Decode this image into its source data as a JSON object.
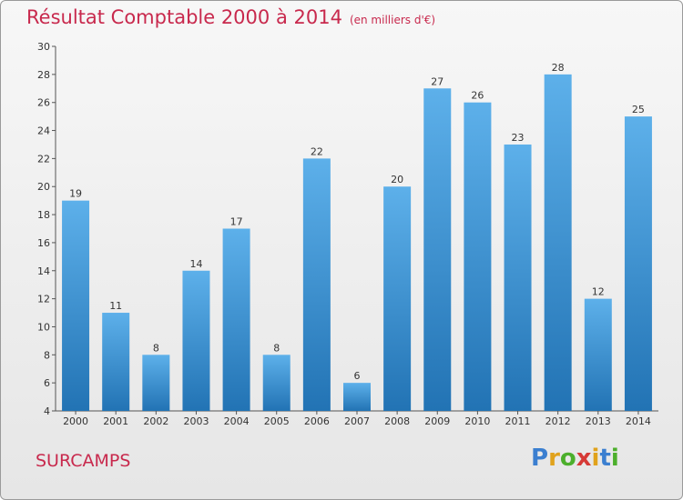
{
  "header": {
    "title": "Résultat Comptable 2000 à 2014",
    "unit": "(en milliers d'€)"
  },
  "footer": {
    "place": "SURCAMPS",
    "logo": "Proxiti"
  },
  "colors": {
    "bar_light": "#5db0ea",
    "bar_dark": "#2273b4",
    "title": "#c8294d"
  },
  "chart_data": {
    "type": "bar",
    "title": "Résultat Comptable 2000 à 2014",
    "xlabel": "",
    "ylabel": "",
    "categories": [
      "2000",
      "2001",
      "2002",
      "2003",
      "2004",
      "2005",
      "2006",
      "2007",
      "2008",
      "2009",
      "2010",
      "2011",
      "2012",
      "2013",
      "2014"
    ],
    "values": [
      19,
      11,
      8,
      14,
      17,
      8,
      22,
      6,
      20,
      27,
      26,
      23,
      28,
      12,
      25
    ],
    "ylim": [
      4,
      30
    ],
    "yticks": [
      4,
      6,
      8,
      10,
      12,
      14,
      16,
      18,
      20,
      22,
      24,
      26,
      28,
      30
    ],
    "grid": false,
    "legend": "none"
  }
}
